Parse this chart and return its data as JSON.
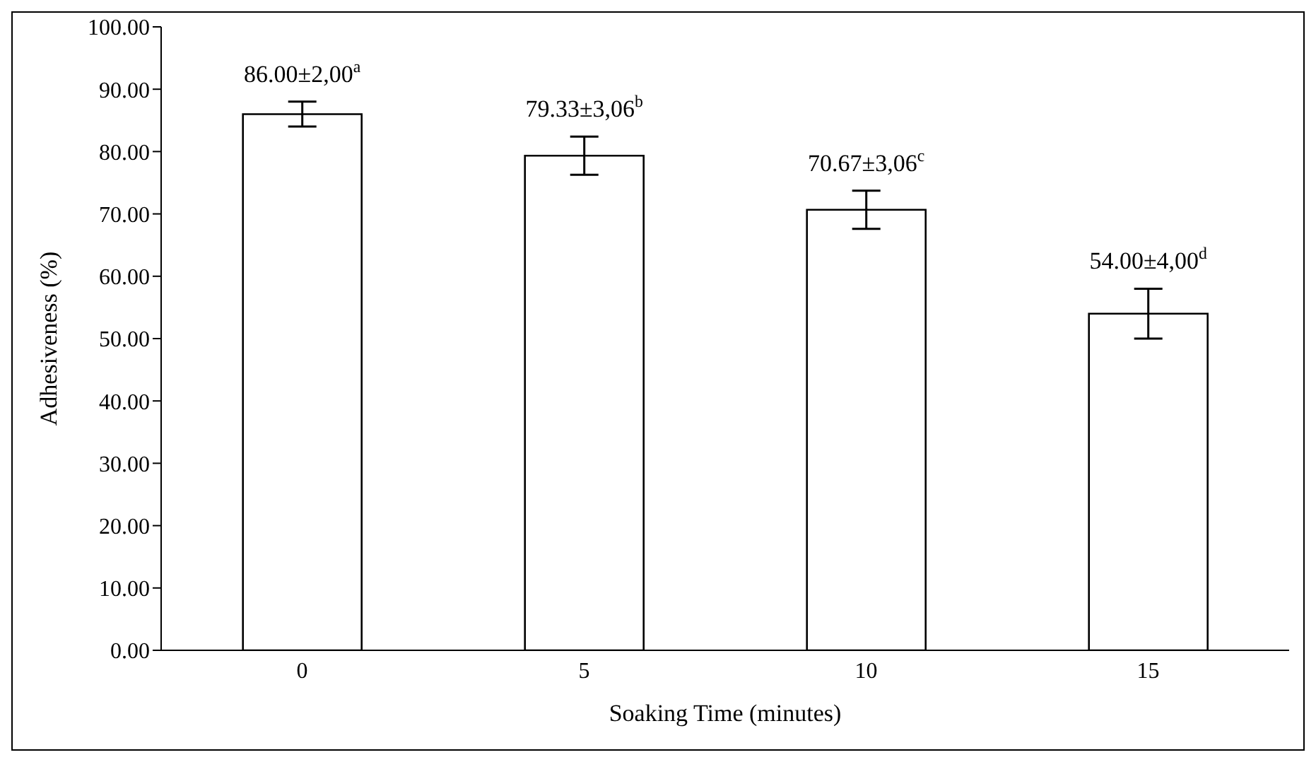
{
  "chart_data": {
    "type": "bar",
    "xlabel": "Soaking Time (minutes)",
    "ylabel": "Adhesiveness (%)",
    "categories": [
      "0",
      "5",
      "10",
      "15"
    ],
    "values": [
      86.0,
      79.33,
      70.67,
      54.0
    ],
    "errors": [
      2.0,
      3.06,
      3.06,
      4.0
    ],
    "value_labels": [
      "86.00±2,00$^{a}$",
      "79.33±3,06$^{b}$",
      "70.67±3,06$^{c}$",
      "54.00±4,00$^{d}$"
    ],
    "color": "#ffffff",
    "ylim": [
      0,
      100
    ],
    "yticks": [
      {
        "value": 0,
        "label": "0.00"
      },
      {
        "value": 10,
        "label": "10.00"
      },
      {
        "value": 20,
        "label": "20.00"
      },
      {
        "value": 30,
        "label": "30.00"
      },
      {
        "value": 40,
        "label": "40.00"
      },
      {
        "value": 50,
        "label": "50.00"
      },
      {
        "value": 60,
        "label": "60.00"
      },
      {
        "value": 70,
        "label": "70.00"
      },
      {
        "value": 80,
        "label": "80.00"
      },
      {
        "value": 90,
        "label": "90.00"
      },
      {
        "value": 100,
        "label": "100.00"
      }
    ],
    "grid": false,
    "legend": false
  }
}
